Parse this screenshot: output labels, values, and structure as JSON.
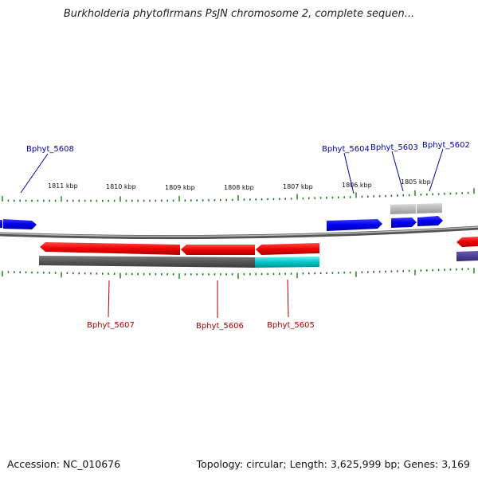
{
  "title": "Burkholderia phytofirmans PsJN chromosome 2, complete sequen...",
  "footer": {
    "accession": "Accession: NC_010676",
    "summary": "Topology: circular; Length: 3,625,999 bp; Genes: 3,169"
  },
  "colors": {
    "forward_gene": "#0000ee",
    "reverse_gene": "#ee0000",
    "forward_label": "#0000aa",
    "reverse_label": "#aa0000",
    "backbone": "#888888",
    "tick": "#1a7a1a",
    "pseudo": "#aaaaaa",
    "cds_dark": "#555555",
    "cds_cyan": "#00c8c8",
    "purple": "#4b3a8c"
  },
  "scale_labels": [
    "1811 kbp",
    "1810 kbp",
    "1809 kbp",
    "1808 kbp",
    "1807 kbp",
    "1806 kbp",
    "1805 kbp"
  ],
  "genes_forward": [
    {
      "label": "Bphyt_5608"
    },
    {
      "label": "Bphyt_5604"
    },
    {
      "label": "Bphyt_5603"
    },
    {
      "label": "Bphyt_5602"
    }
  ],
  "genes_reverse": [
    {
      "label": "Bphyt_5607"
    },
    {
      "label": "Bphyt_5606"
    },
    {
      "label": "Bphyt_5605"
    }
  ]
}
